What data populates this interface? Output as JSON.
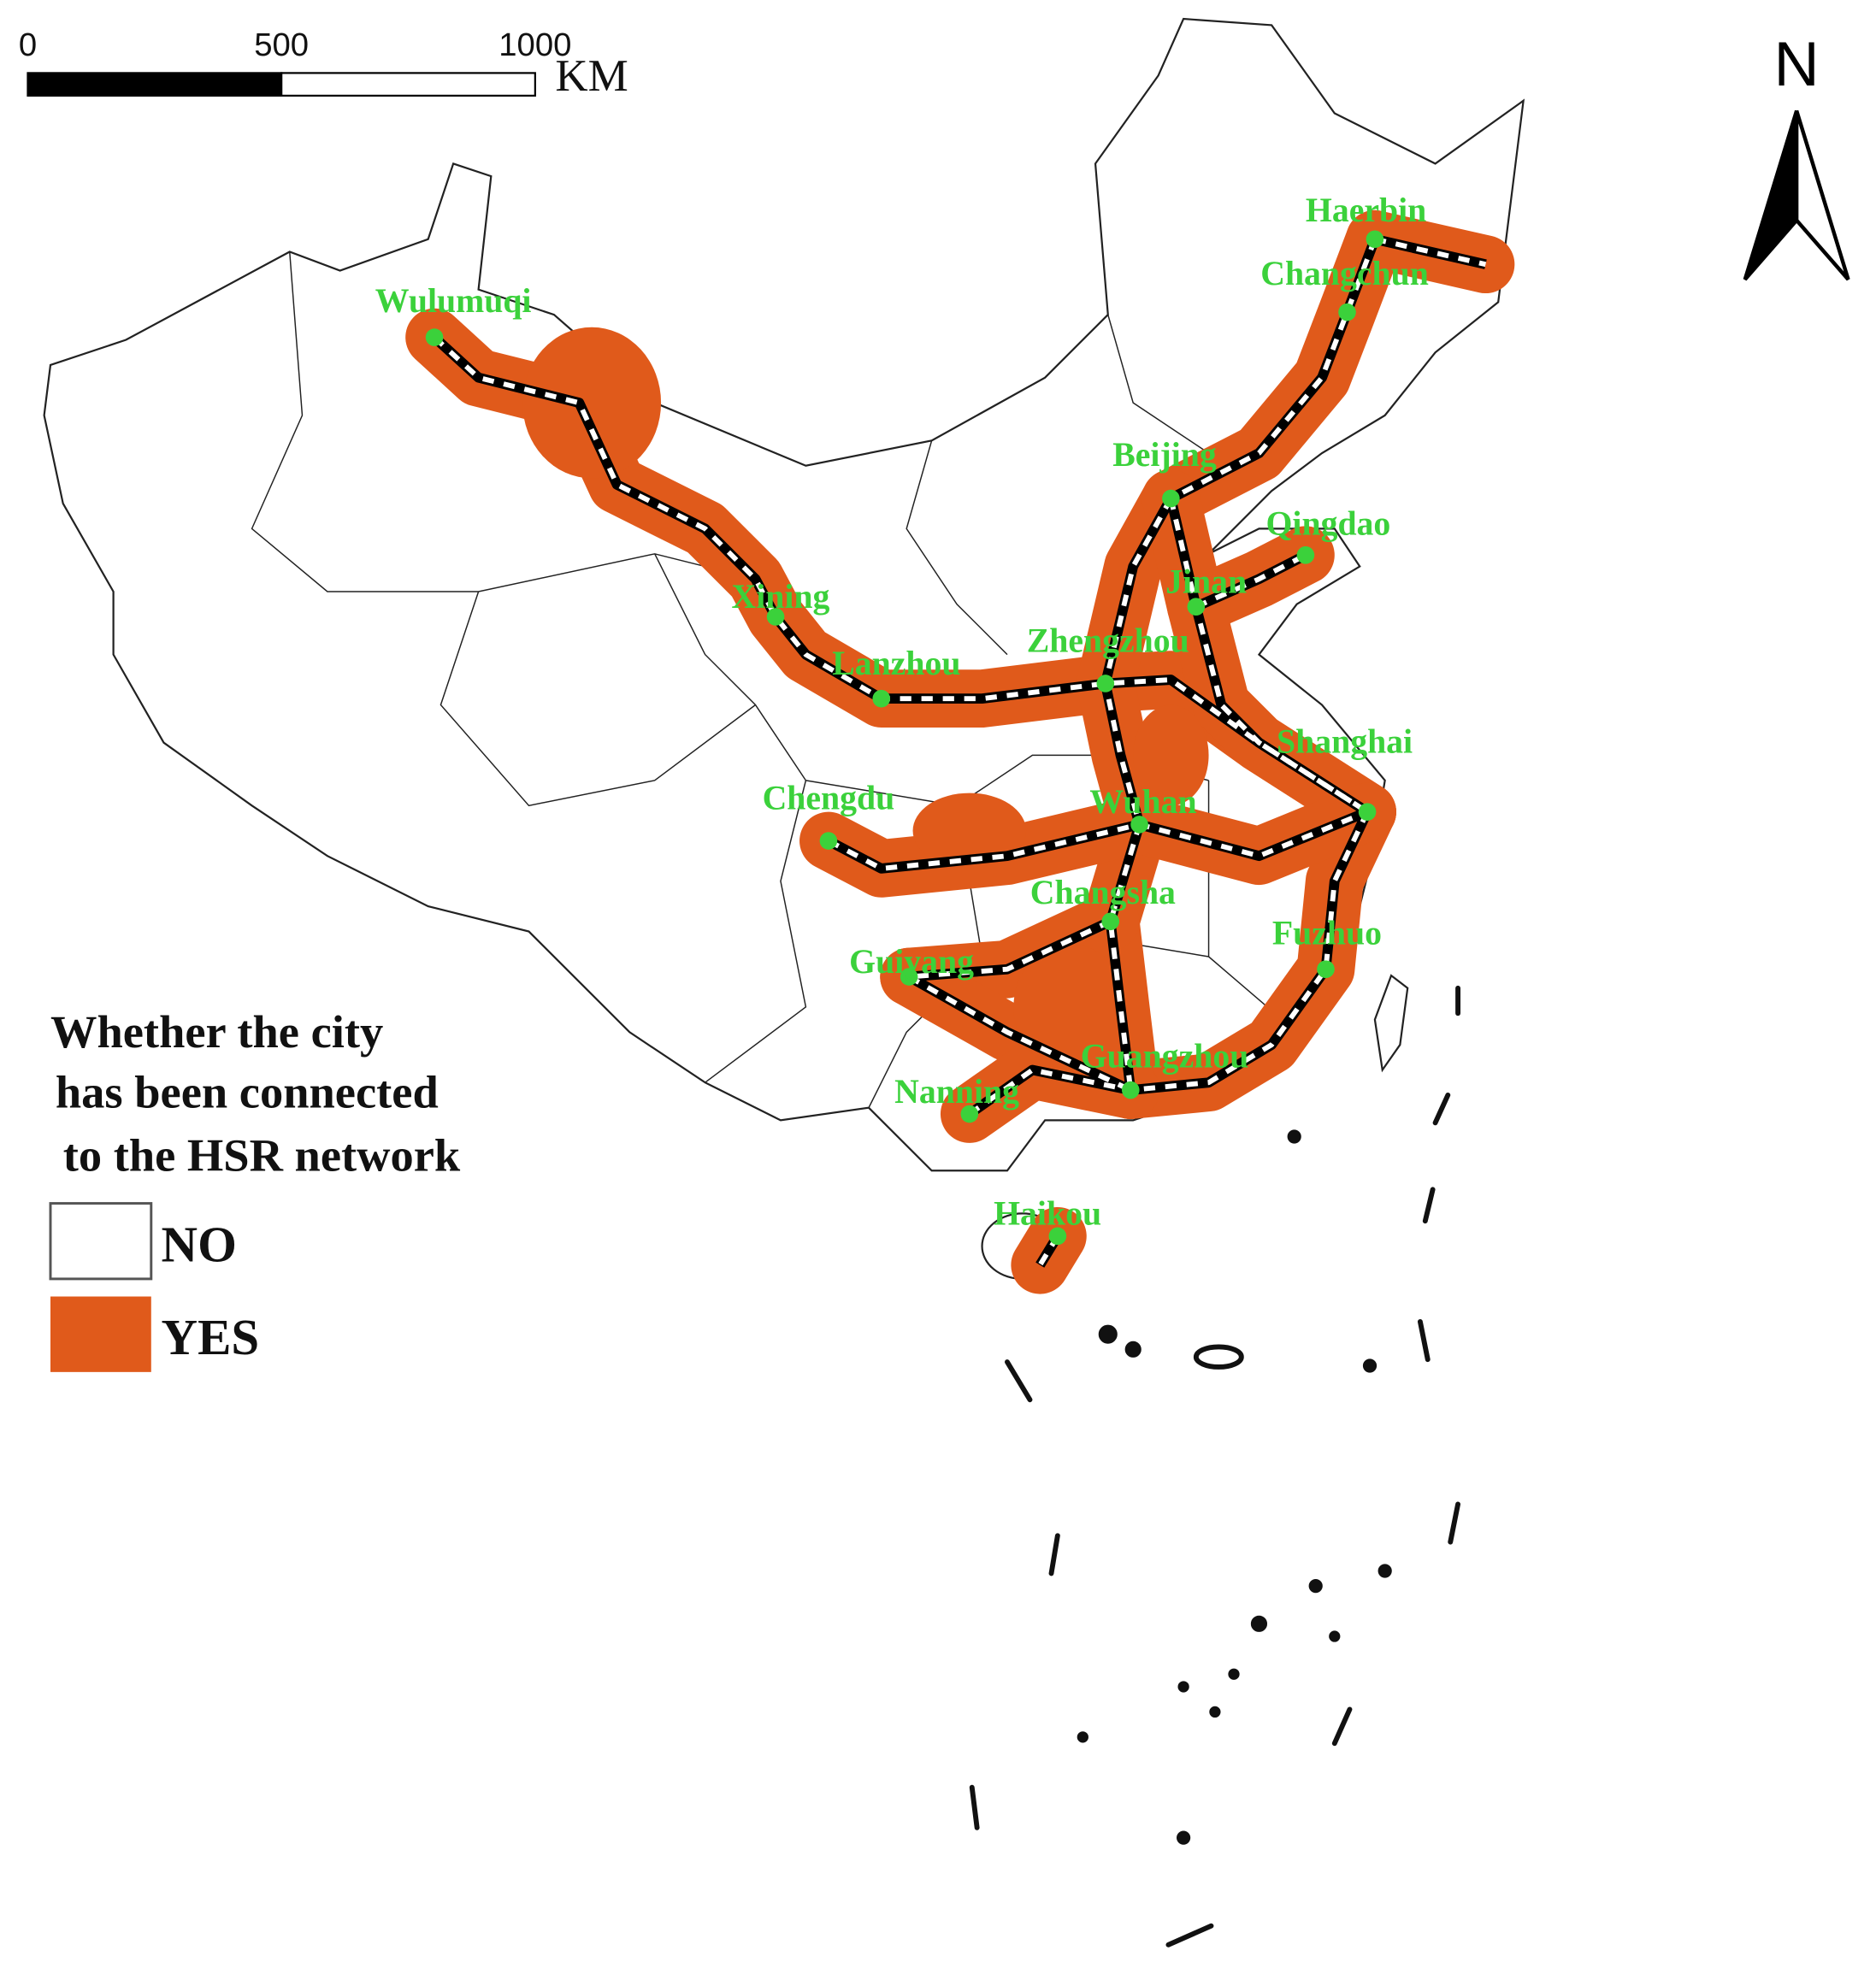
{
  "scale_bar": {
    "ticks": [
      0,
      500,
      1000
    ],
    "unit": "KM"
  },
  "north_label": "N",
  "legend": {
    "title": [
      "Whether the city",
      "has been connected",
      "to the HSR network"
    ],
    "items": [
      "NO",
      "YES"
    ]
  },
  "cities": [
    "Wulumuqi",
    "Haerbin",
    "Changchun",
    "Beijing",
    "Qingdao",
    "Jinan",
    "Xining",
    "Lanzhou",
    "Zhengzhou",
    "Shanghai",
    "Chengdu",
    "Wuhan",
    "Changsha",
    "Fuzhuo",
    "Guiyang",
    "Guangzhou",
    "Nanning",
    "Haikou"
  ]
}
